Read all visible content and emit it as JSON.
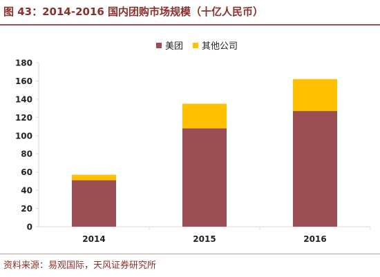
{
  "header": {
    "title": "图 43：2014-2016 国内团购市场规模（十亿人民币）"
  },
  "footer": {
    "source": "资料来源：易观国际，天风证券研究所"
  },
  "colors": {
    "meituan": "#9b4f52",
    "others": "#ffc000",
    "axis": "#d9d9d9",
    "text": "#222222"
  },
  "chart_data": {
    "type": "bar",
    "stacked": true,
    "categories": [
      "2014",
      "2015",
      "2016"
    ],
    "series": [
      {
        "name": "美团",
        "values": [
          51,
          108,
          127
        ]
      },
      {
        "name": "其他公司",
        "values": [
          6,
          27,
          35
        ]
      }
    ],
    "ylim": [
      0,
      180
    ],
    "yticks": [
      "0",
      "20",
      "40",
      "60",
      "80",
      "100",
      "120",
      "140",
      "160",
      "180"
    ],
    "legend_position": "top-center",
    "grid": false
  }
}
